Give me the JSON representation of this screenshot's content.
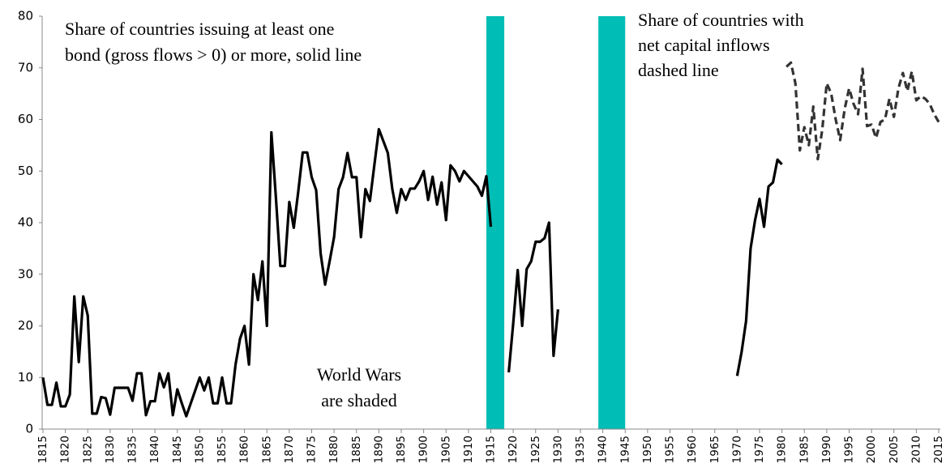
{
  "chart_data": {
    "type": "line",
    "annotations": [
      {
        "lines": [
          "Share of  countries issuing at least one",
          "bond (gross flows > 0) or more, solid line"
        ]
      },
      {
        "lines": [
          "Share of countries with",
          "net capital inflows",
          "dashed line"
        ]
      },
      {
        "lines": [
          "World Wars",
          "are shaded"
        ]
      }
    ],
    "shaded": [
      {
        "start": 1914,
        "end": 1918
      },
      {
        "start": 1939,
        "end": 1945
      }
    ],
    "shade_color": "#00bdb5",
    "xlim": [
      1815,
      2015
    ],
    "xticks": [
      1815,
      1820,
      1825,
      1830,
      1835,
      1840,
      1845,
      1850,
      1855,
      1860,
      1865,
      1870,
      1875,
      1880,
      1885,
      1890,
      1895,
      1900,
      1905,
      1910,
      1915,
      1920,
      1925,
      1930,
      1935,
      1940,
      1945,
      1950,
      1955,
      1960,
      1965,
      1970,
      1975,
      1980,
      1985,
      1990,
      1995,
      2000,
      2005,
      2010,
      2015
    ],
    "ylim": [
      0,
      80
    ],
    "yticks": [
      0,
      10,
      20,
      30,
      40,
      50,
      60,
      70,
      80
    ],
    "grid": false,
    "series": [
      {
        "color": "#000000",
        "dash": false,
        "x": [
          1815,
          1816,
          1817,
          1818,
          1819,
          1820,
          1821,
          1822,
          1823,
          1824,
          1825,
          1826,
          1827,
          1828,
          1829,
          1830,
          1831,
          1832,
          1833,
          1834,
          1835,
          1836,
          1837,
          1838,
          1839,
          1840,
          1841,
          1842,
          1843,
          1844,
          1845,
          1846,
          1847,
          1848,
          1849,
          1850,
          1851,
          1852,
          1853,
          1854,
          1855,
          1856,
          1857,
          1858,
          1859,
          1860,
          1861,
          1862,
          1863,
          1864,
          1865,
          1866,
          1867,
          1868,
          1869,
          1870,
          1871,
          1872,
          1873,
          1874,
          1875,
          1876,
          1877,
          1878,
          1879,
          1880,
          1881,
          1882,
          1883,
          1884,
          1885,
          1886,
          1887,
          1888,
          1889,
          1890,
          1891,
          1892,
          1893,
          1894,
          1895,
          1896,
          1897,
          1898,
          1899,
          1900,
          1901,
          1902,
          1903,
          1904,
          1905,
          1906,
          1907,
          1908,
          1909,
          1910,
          1911,
          1912,
          1913,
          1914,
          1915,
          1916,
          1917,
          1918,
          1919,
          1920,
          1921,
          1922,
          1923,
          1924,
          1925,
          1926,
          1927,
          1928,
          1929,
          1930,
          1931,
          1932,
          1933,
          1934,
          1935,
          1936,
          1937,
          1938,
          1939,
          1940,
          1941,
          1942,
          1943,
          1944,
          1945,
          1946,
          1947,
          1948,
          1949,
          1950,
          1951,
          1952,
          1953,
          1954,
          1955,
          1956,
          1957,
          1958,
          1959,
          1960,
          1961,
          1962,
          1963,
          1964,
          1965,
          1966,
          1967,
          1968,
          1969,
          1970,
          1971,
          1972,
          1973,
          1974,
          1975,
          1976,
          1977,
          1978,
          1979,
          1980
        ],
        "values": [
          10,
          4.7,
          4.7,
          9,
          4.4,
          4.4,
          6.7,
          25.7,
          13,
          25.7,
          22,
          3,
          3,
          6.2,
          6,
          2.8,
          8,
          8,
          8,
          8,
          5.5,
          10.8,
          10.8,
          2.7,
          5.4,
          5.4,
          10.8,
          8.1,
          10.8,
          2.7,
          7.7,
          5,
          2.5,
          5,
          7.5,
          10,
          7.5,
          10,
          5,
          5,
          10,
          5,
          5,
          12.5,
          17.5,
          20,
          12.5,
          30,
          25,
          32.5,
          20,
          57.5,
          45,
          31.6,
          31.6,
          44,
          39,
          46,
          53.6,
          53.6,
          48.8,
          46.3,
          34,
          28,
          32.5,
          37.2,
          46.5,
          48.8,
          53.5,
          48.8,
          48.8,
          37.2,
          46.5,
          44.2,
          51.2,
          58.1,
          55.8,
          53.5,
          46.5,
          41.9,
          46.5,
          44.4,
          46.6,
          46.6,
          48,
          50,
          44.4,
          48.9,
          43.5,
          47.8,
          40.5,
          51.1,
          50,
          48,
          50,
          49,
          48,
          47,
          45.2,
          49,
          39.2,
          null,
          null,
          null,
          11,
          20.5,
          30.8,
          20,
          31,
          32.5,
          36.3,
          36.3,
          37,
          40,
          14.2,
          23.2,
          null,
          null,
          null,
          null,
          null,
          null,
          null,
          null,
          null,
          null,
          null,
          null,
          null,
          null,
          null,
          null,
          null,
          null,
          null,
          null,
          null,
          null,
          null,
          null,
          null,
          null,
          null,
          null,
          null,
          null,
          null,
          null,
          null,
          null,
          null,
          null,
          null,
          null,
          null,
          10.3,
          15,
          21,
          35,
          40.5,
          44.6,
          39.2,
          47,
          47.8,
          52.2,
          51.3
        ]
      },
      {
        "color": "#333333",
        "dash": true,
        "x": [
          1981,
          1982,
          1983,
          1984,
          1985,
          1986,
          1987,
          1988,
          1989,
          1990,
          1991,
          1992,
          1993,
          1994,
          1995,
          1996,
          1997,
          1998,
          1999,
          2000,
          2001,
          2002,
          2003,
          2004,
          2005,
          2006,
          2007,
          2008,
          2009,
          2010,
          2011,
          2012,
          2013,
          2014,
          2015
        ],
        "values": [
          70.2,
          71,
          67,
          54,
          58.5,
          55,
          62.5,
          52.3,
          58,
          67,
          65,
          60,
          56,
          62,
          66,
          63,
          61,
          69.8,
          58.7,
          59,
          56.4,
          59.5,
          60,
          64,
          60.5,
          66,
          69,
          65.5,
          69.3,
          63.7,
          64.5,
          64,
          63,
          61,
          59.5
        ]
      }
    ]
  }
}
